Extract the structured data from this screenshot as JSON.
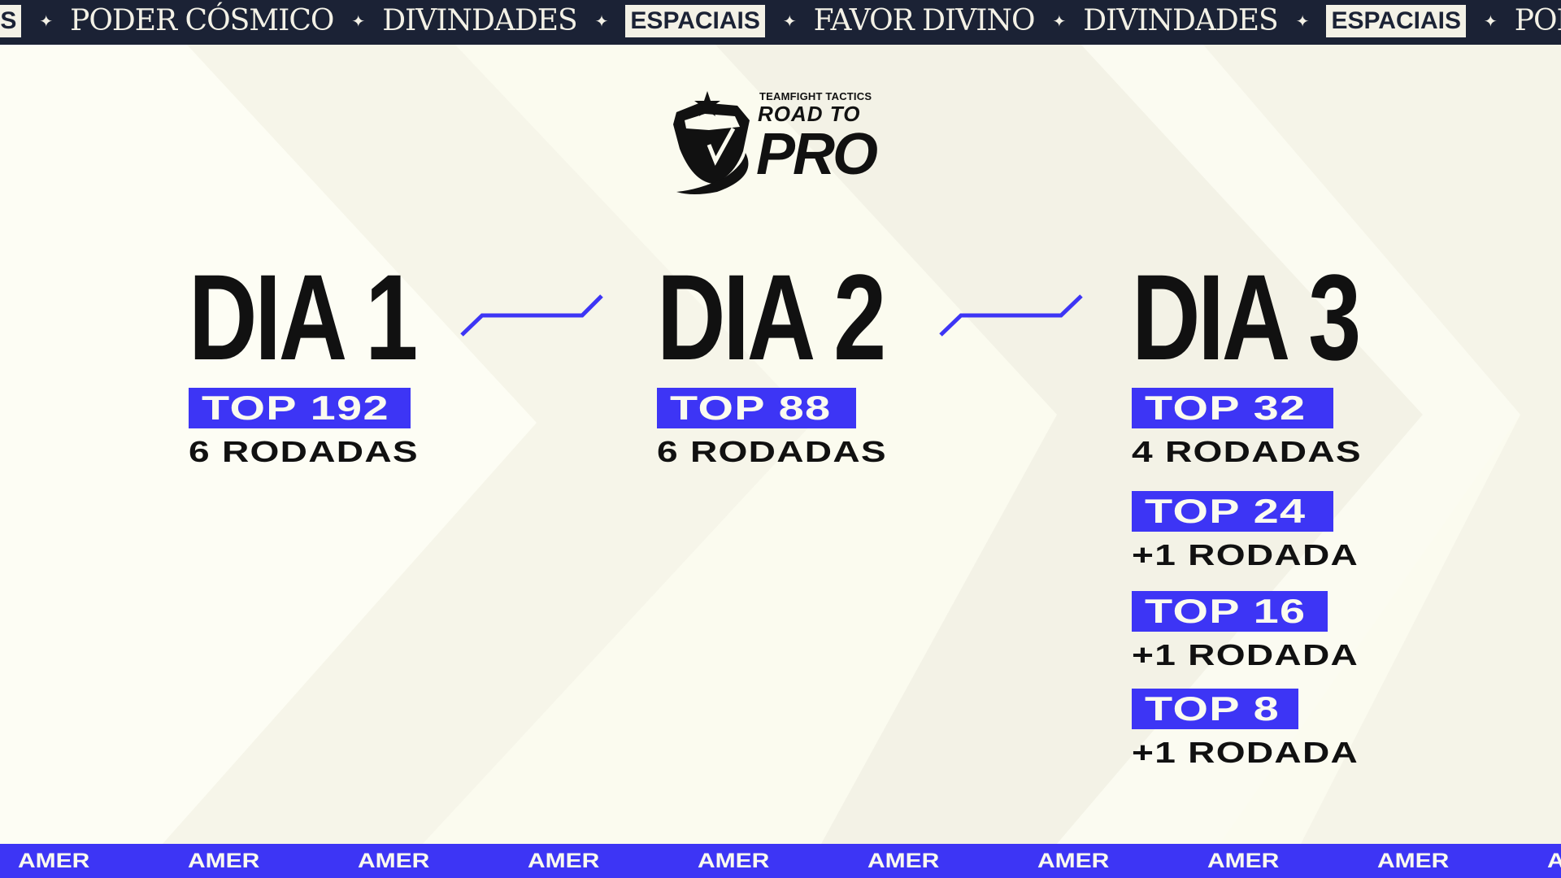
{
  "top_ticker": {
    "items": [
      "IS",
      "PODER CÓSMICO",
      "DIVINDADES",
      "ESPACIAIS",
      "FAVOR DIVINO",
      "DIVINDADES",
      "ESPACIAIS",
      "PODE"
    ],
    "styles": [
      "bold",
      "thin",
      "thin",
      "bold",
      "thin",
      "thin",
      "bold",
      "thin"
    ],
    "separator_icon": "sparkle-star-icon"
  },
  "logo": {
    "line1": "TEAMFIGHT TACTICS",
    "line2": "ROAD TO",
    "line3": "PRO"
  },
  "days": [
    {
      "title": "DIA 1",
      "stages": [
        {
          "badge": "TOP 192",
          "rounds": "6 RODADAS"
        }
      ]
    },
    {
      "title": "DIA 2",
      "stages": [
        {
          "badge": "TOP 88",
          "rounds": "6 RODADAS"
        }
      ]
    },
    {
      "title": "DIA 3",
      "stages": [
        {
          "badge": "TOP 32",
          "rounds": "4 RODADAS"
        },
        {
          "badge": "TOP 24",
          "rounds": "+1 RODADA"
        },
        {
          "badge": "TOP 16",
          "rounds": "+1 RODADA"
        },
        {
          "badge": "TOP 8",
          "rounds": "+1 RODADA"
        }
      ]
    }
  ],
  "bottom_ticker": {
    "label": "AMER"
  },
  "colors": {
    "accent": "#3d35f5",
    "dark": "#1b2235",
    "background": "#fbfbef",
    "text": "#111111"
  }
}
